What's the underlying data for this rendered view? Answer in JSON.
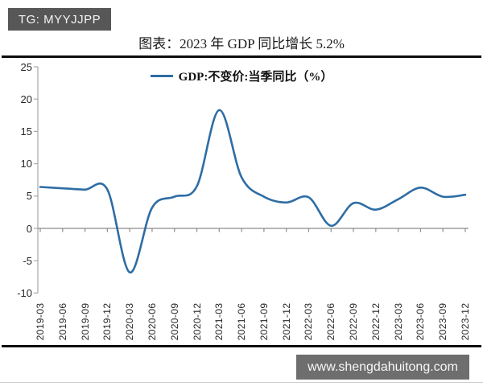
{
  "watermarks": {
    "tg": "TG: MYYJJPP",
    "site": "www.shengdahuitong.com"
  },
  "title": "图表：2023 年 GDP 同比增长 5.2%",
  "legend": "GDP:不变价:当季同比（%）",
  "colors": {
    "line": "#2e6da4",
    "axis": "#a6a6a6",
    "zero_line": "#8c8c8c",
    "tg_badge_bg": "#575757",
    "site_badge_bg": "#6e6e6e"
  },
  "chart_data": {
    "type": "line",
    "title": "图表：2023 年 GDP 同比增长 5.2%",
    "legend_entries": [
      "GDP:不变价:当季同比（%）"
    ],
    "legend_position": "top-center",
    "smooth": true,
    "grid": false,
    "x": [
      "2019-03",
      "2019-06",
      "2019-09",
      "2019-12",
      "2020-03",
      "2020-06",
      "2020-09",
      "2020-12",
      "2021-03",
      "2021-06",
      "2021-09",
      "2021-12",
      "2022-03",
      "2022-06",
      "2022-09",
      "2022-12",
      "2023-03",
      "2023-06",
      "2023-09",
      "2023-12"
    ],
    "series": [
      {
        "name": "GDP:不变价:当季同比（%）",
        "values": [
          6.4,
          6.2,
          6.0,
          6.0,
          -6.8,
          3.2,
          4.9,
          6.5,
          18.3,
          7.9,
          4.9,
          4.0,
          4.8,
          0.4,
          3.9,
          2.9,
          4.5,
          6.3,
          4.9,
          5.2
        ]
      }
    ],
    "ylim": [
      -10,
      25
    ],
    "yticks": [
      25,
      20,
      15,
      10,
      5,
      0,
      -5,
      -10
    ],
    "xlabel": "",
    "ylabel": ""
  }
}
